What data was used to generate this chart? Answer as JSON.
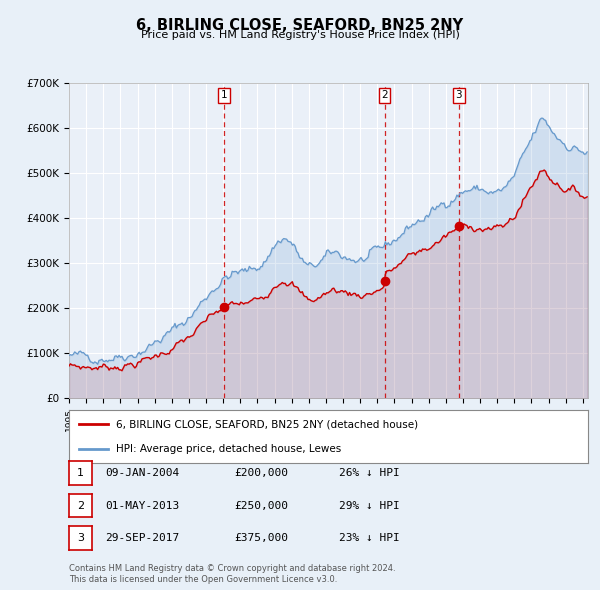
{
  "title": "6, BIRLING CLOSE, SEAFORD, BN25 2NY",
  "subtitle": "Price paid vs. HM Land Registry's House Price Index (HPI)",
  "red_label": "6, BIRLING CLOSE, SEAFORD, BN25 2NY (detached house)",
  "blue_label": "HPI: Average price, detached house, Lewes",
  "transactions": [
    {
      "num": 1,
      "date": "09-JAN-2004",
      "price": 200000,
      "pct": "26%",
      "dir": "↓",
      "x_year": 2004.03
    },
    {
      "num": 2,
      "date": "01-MAY-2013",
      "price": 250000,
      "pct": "29%",
      "dir": "↓",
      "x_year": 2013.42
    },
    {
      "num": 3,
      "date": "29-SEP-2017",
      "price": 375000,
      "pct": "23%",
      "dir": "↓",
      "x_year": 2017.75
    }
  ],
  "footnote1": "Contains HM Land Registry data © Crown copyright and database right 2024.",
  "footnote2": "This data is licensed under the Open Government Licence v3.0.",
  "ylim": [
    0,
    700000
  ],
  "xlim_start": 1995.0,
  "xlim_end": 2025.3,
  "bg_color": "#e8f0f8",
  "plot_bg": "#eaf0f8",
  "red_color": "#cc0000",
  "blue_color": "#6699cc",
  "grid_color": "#ffffff",
  "vline_color": "#cc0000",
  "yticks": [
    0,
    100000,
    200000,
    300000,
    400000,
    500000,
    600000,
    700000
  ],
  "ytick_labels": [
    "£0",
    "£100K",
    "£200K",
    "£300K",
    "£400K",
    "£500K",
    "£600K",
    "£700K"
  ]
}
